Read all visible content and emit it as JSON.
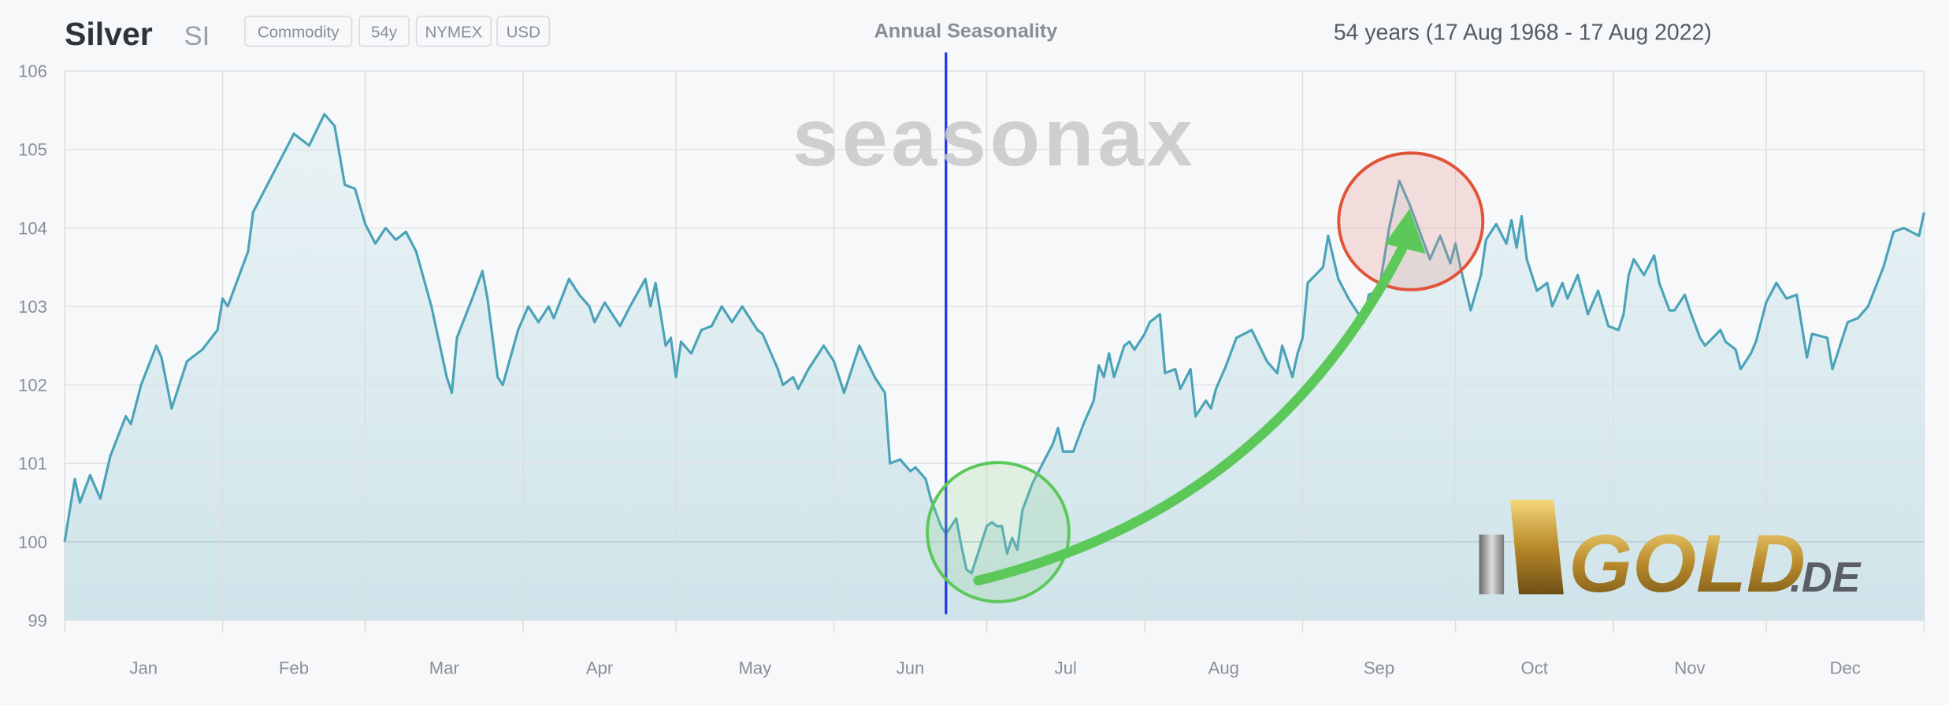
{
  "header": {
    "title": "Silver",
    "symbol": "SI",
    "tags": [
      "Commodity",
      "54y",
      "NYMEX",
      "USD"
    ],
    "chart_title": "Annual Seasonality",
    "period": "54 years (17 Aug 1968 - 17 Aug 2022)"
  },
  "watermarks": {
    "seasonax": "seasonax",
    "gold_logo": "GOLD.DE"
  },
  "colors": {
    "line": "#4aa3b8",
    "fill": "#d3e8ee",
    "marker": "#2233dd",
    "green": "#5cc85a",
    "red": "#e0553a"
  },
  "chart_data": {
    "type": "area",
    "title": "Annual Seasonality",
    "xlabel": "",
    "ylabel": "",
    "ylim": [
      99,
      106
    ],
    "xlim": [
      0,
      365
    ],
    "grid": true,
    "yticks": [
      "99",
      "100",
      "101",
      "102",
      "103",
      "104",
      "105",
      "106"
    ],
    "months": [
      {
        "label": "Jan",
        "start": 0
      },
      {
        "label": "Feb",
        "start": 31
      },
      {
        "label": "Mar",
        "start": 59
      },
      {
        "label": "Apr",
        "start": 90
      },
      {
        "label": "May",
        "start": 120
      },
      {
        "label": "Jun",
        "start": 151
      },
      {
        "label": "Jul",
        "start": 181
      },
      {
        "label": "Aug",
        "start": 212
      },
      {
        "label": "Sep",
        "start": 243
      },
      {
        "label": "Oct",
        "start": 273
      },
      {
        "label": "Nov",
        "start": 304
      },
      {
        "label": "Dec",
        "start": 334
      }
    ],
    "current_day_marker": 173,
    "series": [
      {
        "name": "Silver seasonality",
        "points": [
          [
            0,
            100.0
          ],
          [
            2,
            100.8
          ],
          [
            3,
            100.5
          ],
          [
            5,
            100.85
          ],
          [
            7,
            100.55
          ],
          [
            9,
            101.1
          ],
          [
            12,
            101.6
          ],
          [
            13,
            101.5
          ],
          [
            15,
            102.0
          ],
          [
            18,
            102.5
          ],
          [
            19,
            102.35
          ],
          [
            21,
            101.7
          ],
          [
            24,
            102.3
          ],
          [
            27,
            102.45
          ],
          [
            30,
            102.7
          ],
          [
            31,
            103.1
          ],
          [
            32,
            103.0
          ],
          [
            36,
            103.7
          ],
          [
            37,
            104.2
          ],
          [
            41,
            104.7
          ],
          [
            45,
            105.2
          ],
          [
            48,
            105.05
          ],
          [
            51,
            105.45
          ],
          [
            53,
            105.3
          ],
          [
            55,
            104.55
          ],
          [
            57,
            104.5
          ],
          [
            59,
            104.05
          ],
          [
            61,
            103.8
          ],
          [
            63,
            104.0
          ],
          [
            65,
            103.85
          ],
          [
            67,
            103.95
          ],
          [
            69,
            103.7
          ],
          [
            72,
            103.0
          ],
          [
            75,
            102.1
          ],
          [
            76,
            101.9
          ],
          [
            77,
            102.6
          ],
          [
            80,
            103.1
          ],
          [
            82,
            103.45
          ],
          [
            83,
            103.1
          ],
          [
            85,
            102.1
          ],
          [
            86,
            102.0
          ],
          [
            89,
            102.7
          ],
          [
            91,
            103.0
          ],
          [
            93,
            102.8
          ],
          [
            95,
            103.0
          ],
          [
            96,
            102.85
          ],
          [
            99,
            103.35
          ],
          [
            101,
            103.15
          ],
          [
            103,
            103.0
          ],
          [
            104,
            102.8
          ],
          [
            106,
            103.05
          ],
          [
            109,
            102.75
          ],
          [
            111,
            103.0
          ],
          [
            114,
            103.35
          ],
          [
            115,
            103.0
          ],
          [
            116,
            103.3
          ],
          [
            118,
            102.5
          ],
          [
            119,
            102.6
          ],
          [
            120,
            102.1
          ],
          [
            121,
            102.55
          ],
          [
            123,
            102.4
          ],
          [
            125,
            102.7
          ],
          [
            127,
            102.75
          ],
          [
            129,
            103.0
          ],
          [
            131,
            102.8
          ],
          [
            133,
            103.0
          ],
          [
            136,
            102.7
          ],
          [
            137,
            102.65
          ],
          [
            140,
            102.2
          ],
          [
            141,
            102.0
          ],
          [
            143,
            102.1
          ],
          [
            144,
            101.95
          ],
          [
            146,
            102.2
          ],
          [
            149,
            102.5
          ],
          [
            151,
            102.3
          ],
          [
            153,
            101.9
          ],
          [
            156,
            102.5
          ],
          [
            159,
            102.1
          ],
          [
            161,
            101.9
          ],
          [
            162,
            101.0
          ],
          [
            164,
            101.05
          ],
          [
            166,
            100.9
          ],
          [
            167,
            100.95
          ],
          [
            169,
            100.8
          ],
          [
            170,
            100.55
          ],
          [
            172,
            100.2
          ],
          [
            173,
            100.1
          ],
          [
            175,
            100.3
          ],
          [
            176,
            99.95
          ],
          [
            177,
            99.65
          ],
          [
            178,
            99.6
          ],
          [
            179,
            99.8
          ],
          [
            181,
            100.2
          ],
          [
            182,
            100.25
          ],
          [
            183,
            100.2
          ],
          [
            184,
            100.2
          ],
          [
            185,
            99.85
          ],
          [
            186,
            100.05
          ],
          [
            187,
            99.9
          ],
          [
            188,
            100.4
          ],
          [
            190,
            100.75
          ],
          [
            192,
            101.0
          ],
          [
            194,
            101.25
          ],
          [
            195,
            101.45
          ],
          [
            196,
            101.15
          ],
          [
            198,
            101.15
          ],
          [
            200,
            101.5
          ],
          [
            202,
            101.8
          ],
          [
            203,
            102.25
          ],
          [
            204,
            102.1
          ],
          [
            205,
            102.4
          ],
          [
            206,
            102.1
          ],
          [
            208,
            102.5
          ],
          [
            209,
            102.55
          ],
          [
            210,
            102.45
          ],
          [
            212,
            102.65
          ],
          [
            213,
            102.8
          ],
          [
            215,
            102.9
          ],
          [
            216,
            102.15
          ],
          [
            218,
            102.2
          ],
          [
            219,
            101.95
          ],
          [
            221,
            102.2
          ],
          [
            222,
            101.6
          ],
          [
            224,
            101.8
          ],
          [
            225,
            101.7
          ],
          [
            226,
            101.95
          ],
          [
            228,
            102.25
          ],
          [
            230,
            102.6
          ],
          [
            233,
            102.7
          ],
          [
            236,
            102.3
          ],
          [
            238,
            102.15
          ],
          [
            239,
            102.5
          ],
          [
            241,
            102.1
          ],
          [
            242,
            102.4
          ],
          [
            243,
            102.6
          ],
          [
            244,
            103.3
          ],
          [
            247,
            103.5
          ],
          [
            248,
            103.9
          ],
          [
            250,
            103.35
          ],
          [
            252,
            103.1
          ],
          [
            255,
            102.8
          ],
          [
            256,
            103.15
          ],
          [
            258,
            103.2
          ],
          [
            260,
            104.0
          ],
          [
            262,
            104.6
          ],
          [
            264,
            104.3
          ],
          [
            268,
            103.6
          ],
          [
            270,
            103.9
          ],
          [
            272,
            103.55
          ],
          [
            273,
            103.8
          ],
          [
            274,
            103.5
          ],
          [
            276,
            102.95
          ],
          [
            278,
            103.4
          ],
          [
            279,
            103.85
          ],
          [
            281,
            104.05
          ],
          [
            283,
            103.8
          ],
          [
            284,
            104.1
          ],
          [
            285,
            103.75
          ],
          [
            286,
            104.15
          ],
          [
            287,
            103.6
          ],
          [
            289,
            103.2
          ],
          [
            291,
            103.3
          ],
          [
            292,
            103.0
          ],
          [
            294,
            103.3
          ],
          [
            295,
            103.1
          ],
          [
            297,
            103.4
          ],
          [
            299,
            102.9
          ],
          [
            301,
            103.2
          ],
          [
            303,
            102.75
          ],
          [
            305,
            102.7
          ],
          [
            306,
            102.9
          ],
          [
            307,
            103.4
          ],
          [
            308,
            103.6
          ],
          [
            310,
            103.4
          ],
          [
            312,
            103.65
          ],
          [
            313,
            103.3
          ],
          [
            315,
            102.95
          ],
          [
            316,
            102.95
          ],
          [
            318,
            103.15
          ],
          [
            319,
            102.95
          ],
          [
            321,
            102.6
          ],
          [
            322,
            102.5
          ],
          [
            325,
            102.7
          ],
          [
            326,
            102.55
          ],
          [
            328,
            102.45
          ],
          [
            329,
            102.2
          ],
          [
            331,
            102.4
          ],
          [
            332,
            102.55
          ],
          [
            334,
            103.05
          ],
          [
            336,
            103.3
          ],
          [
            338,
            103.1
          ],
          [
            340,
            103.15
          ],
          [
            342,
            102.35
          ],
          [
            343,
            102.65
          ],
          [
            346,
            102.6
          ],
          [
            347,
            102.2
          ],
          [
            350,
            102.8
          ],
          [
            352,
            102.85
          ],
          [
            354,
            103.0
          ],
          [
            357,
            103.5
          ],
          [
            359,
            103.95
          ],
          [
            361,
            104.0
          ],
          [
            364,
            103.9
          ],
          [
            365,
            104.2
          ]
        ]
      }
    ]
  }
}
